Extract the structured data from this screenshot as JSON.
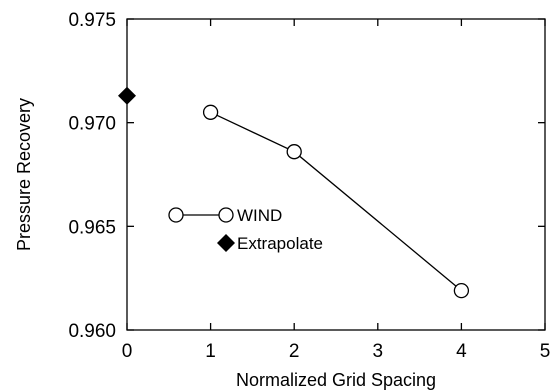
{
  "chart_data": {
    "type": "line",
    "title": "",
    "xlabel": "Normalized Grid Spacing",
    "ylabel": "Pressure Recovery",
    "xlim": [
      0,
      5
    ],
    "ylim": [
      0.96,
      0.975
    ],
    "xticks": [
      0,
      1,
      2,
      3,
      4,
      5
    ],
    "yticks": [
      0.96,
      0.965,
      0.97,
      0.975
    ],
    "xtick_labels": [
      "0",
      "1",
      "2",
      "3",
      "4",
      "5"
    ],
    "ytick_labels": [
      "0.960",
      "0.965",
      "0.970",
      "0.975"
    ],
    "grid": false,
    "legend_position": "center-left",
    "series": [
      {
        "name": "WIND",
        "marker": "open-circle",
        "line": true,
        "color": "#000000",
        "x": [
          1,
          2,
          4
        ],
        "y": [
          0.9705,
          0.9686,
          0.9619
        ]
      },
      {
        "name": "Extrapolate",
        "marker": "filled-diamond",
        "line": false,
        "color": "#000000",
        "x": [
          0
        ],
        "y": [
          0.9713
        ]
      }
    ]
  }
}
